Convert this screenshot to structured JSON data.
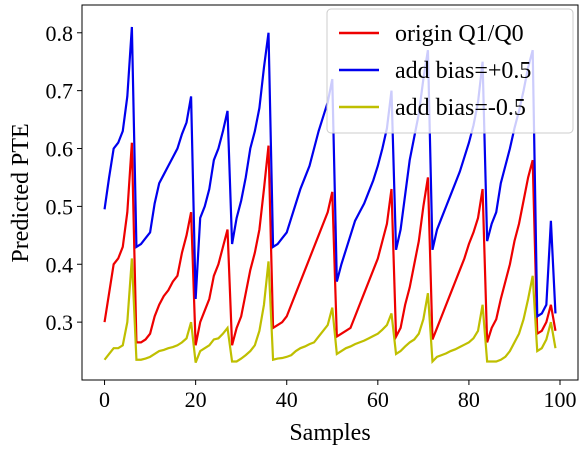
{
  "chart_data": {
    "type": "line",
    "xlabel": "Samples",
    "ylabel": "Predicted PTE",
    "x": [
      0,
      1,
      2,
      3,
      4,
      5,
      6,
      7,
      8,
      9,
      10,
      11,
      12,
      13,
      14,
      15,
      16,
      17,
      18,
      19,
      20,
      21,
      22,
      23,
      24,
      25,
      26,
      27,
      28,
      29,
      30,
      31,
      32,
      33,
      34,
      35,
      36,
      37,
      38,
      39,
      40,
      41,
      42,
      43,
      44,
      45,
      46,
      47,
      48,
      49,
      50,
      51,
      52,
      53,
      54,
      55,
      56,
      57,
      58,
      59,
      60,
      61,
      62,
      63,
      64,
      65,
      66,
      67,
      68,
      69,
      70,
      71,
      72,
      73,
      74,
      75,
      76,
      77,
      78,
      79,
      80,
      81,
      82,
      83,
      84,
      85,
      86,
      87,
      88,
      89,
      90,
      91,
      92,
      93,
      94,
      95,
      96,
      97,
      98,
      99
    ],
    "series": [
      {
        "name": "origin Q1/Q0",
        "color": "#ee0000",
        "values": [
          0.3,
          0.35,
          0.4,
          0.41,
          0.43,
          0.49,
          0.61,
          0.265,
          0.265,
          0.27,
          0.28,
          0.31,
          0.33,
          0.345,
          0.355,
          0.37,
          0.38,
          0.42,
          0.45,
          0.49,
          0.26,
          0.3,
          0.32,
          0.34,
          0.38,
          0.4,
          0.43,
          0.46,
          0.26,
          0.29,
          0.31,
          0.35,
          0.39,
          0.42,
          0.46,
          0.53,
          0.605,
          0.29,
          0.295,
          0.3,
          0.31,
          0.33,
          0.35,
          0.37,
          0.39,
          0.41,
          0.43,
          0.45,
          0.47,
          0.49,
          0.525,
          0.275,
          0.28,
          0.285,
          0.29,
          0.31,
          0.33,
          0.35,
          0.37,
          0.39,
          0.41,
          0.44,
          0.47,
          0.53,
          0.275,
          0.29,
          0.33,
          0.36,
          0.4,
          0.44,
          0.5,
          0.55,
          0.27,
          0.29,
          0.31,
          0.33,
          0.35,
          0.37,
          0.39,
          0.41,
          0.435,
          0.455,
          0.48,
          0.53,
          0.265,
          0.29,
          0.305,
          0.34,
          0.37,
          0.4,
          0.44,
          0.47,
          0.51,
          0.55,
          0.58,
          0.28,
          0.285,
          0.3,
          0.33,
          0.285
        ]
      },
      {
        "name": "add bias=+0.5",
        "color": "#0000ee",
        "values": [
          0.495,
          0.55,
          0.6,
          0.61,
          0.63,
          0.69,
          0.81,
          0.43,
          0.435,
          0.445,
          0.455,
          0.505,
          0.54,
          0.555,
          0.57,
          0.585,
          0.6,
          0.625,
          0.645,
          0.69,
          0.34,
          0.48,
          0.5,
          0.53,
          0.58,
          0.6,
          0.63,
          0.665,
          0.435,
          0.48,
          0.51,
          0.55,
          0.6,
          0.63,
          0.67,
          0.74,
          0.8,
          0.43,
          0.435,
          0.445,
          0.455,
          0.48,
          0.505,
          0.53,
          0.55,
          0.57,
          0.6,
          0.63,
          0.655,
          0.68,
          0.72,
          0.37,
          0.4,
          0.425,
          0.45,
          0.475,
          0.49,
          0.505,
          0.525,
          0.545,
          0.57,
          0.6,
          0.635,
          0.7,
          0.425,
          0.46,
          0.52,
          0.58,
          0.62,
          0.66,
          0.72,
          0.77,
          0.425,
          0.46,
          0.48,
          0.5,
          0.52,
          0.54,
          0.56,
          0.585,
          0.61,
          0.64,
          0.68,
          0.75,
          0.44,
          0.47,
          0.49,
          0.54,
          0.57,
          0.6,
          0.635,
          0.665,
          0.7,
          0.74,
          0.77,
          0.31,
          0.315,
          0.33,
          0.475,
          0.315
        ]
      },
      {
        "name": "add bias=-0.5",
        "color": "#bfbf00",
        "values": [
          0.235,
          0.245,
          0.255,
          0.255,
          0.26,
          0.3,
          0.41,
          0.235,
          0.235,
          0.237,
          0.24,
          0.245,
          0.25,
          0.252,
          0.255,
          0.257,
          0.26,
          0.265,
          0.272,
          0.3,
          0.23,
          0.25,
          0.255,
          0.26,
          0.27,
          0.272,
          0.28,
          0.29,
          0.232,
          0.232,
          0.237,
          0.243,
          0.25,
          0.26,
          0.285,
          0.33,
          0.405,
          0.235,
          0.237,
          0.238,
          0.24,
          0.243,
          0.25,
          0.255,
          0.258,
          0.262,
          0.265,
          0.275,
          0.285,
          0.295,
          0.325,
          0.245,
          0.25,
          0.255,
          0.258,
          0.262,
          0.265,
          0.268,
          0.272,
          0.276,
          0.28,
          0.287,
          0.295,
          0.315,
          0.245,
          0.25,
          0.258,
          0.265,
          0.27,
          0.28,
          0.305,
          0.35,
          0.232,
          0.24,
          0.243,
          0.246,
          0.25,
          0.253,
          0.257,
          0.261,
          0.265,
          0.272,
          0.285,
          0.33,
          0.232,
          0.232,
          0.232,
          0.235,
          0.24,
          0.25,
          0.265,
          0.28,
          0.305,
          0.34,
          0.38,
          0.25,
          0.255,
          0.27,
          0.3,
          0.255
        ]
      }
    ],
    "xlim": [
      -4.95,
      103.95
    ],
    "xticks": [
      0,
      20,
      40,
      60,
      80,
      100
    ],
    "ylim": [
      0.2,
      0.848
    ],
    "yticks": [
      0.3,
      0.4,
      0.5,
      0.6,
      0.7,
      0.8
    ],
    "legend": "upper right",
    "grid": false
  }
}
